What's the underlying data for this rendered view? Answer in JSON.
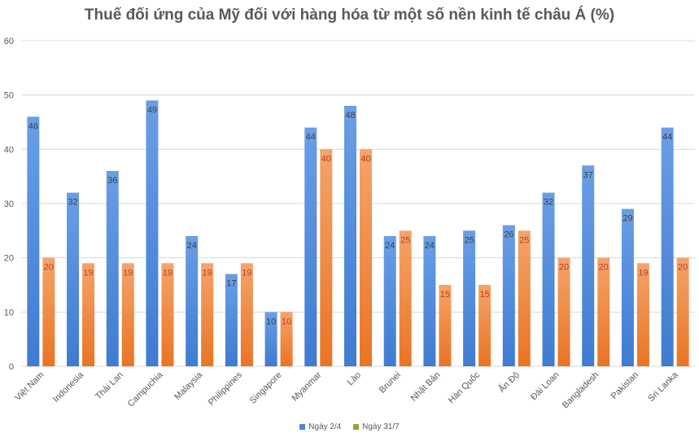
{
  "chart_data": {
    "type": "bar",
    "title": "Thuế đối ứng của Mỹ đối với hàng hóa từ một số nền kinh tế châu Á (%)",
    "xlabel": "",
    "ylabel": "",
    "ylim": [
      0,
      60
    ],
    "yticks": [
      0,
      10,
      20,
      30,
      40,
      50,
      60
    ],
    "grid": true,
    "legend_position": "bottom",
    "categories": [
      "Việt Nam",
      "Indonesia",
      "Thái Lan",
      "Campuchia",
      "Malaysia",
      "Philippines",
      "Singapore",
      "Myanmar",
      "Lào",
      "Brunei",
      "Nhật Bản",
      "Hàn Quốc",
      "Ấn Độ",
      "Đài Loan",
      "Bangladesh",
      "Pakistan",
      "Sri Lanka"
    ],
    "series": [
      {
        "name": "Ngày 2/4",
        "color": "#4a86d8",
        "values": [
          46,
          32,
          36,
          49,
          24,
          17,
          10,
          44,
          48,
          24,
          24,
          25,
          26,
          32,
          37,
          29,
          44
        ]
      },
      {
        "name": "Ngày 31/7",
        "color": "#f08a3e",
        "legend_color": "#8fa832",
        "values": [
          20,
          19,
          19,
          19,
          19,
          19,
          10,
          40,
          40,
          25,
          15,
          15,
          25,
          20,
          20,
          19,
          20
        ]
      }
    ]
  }
}
